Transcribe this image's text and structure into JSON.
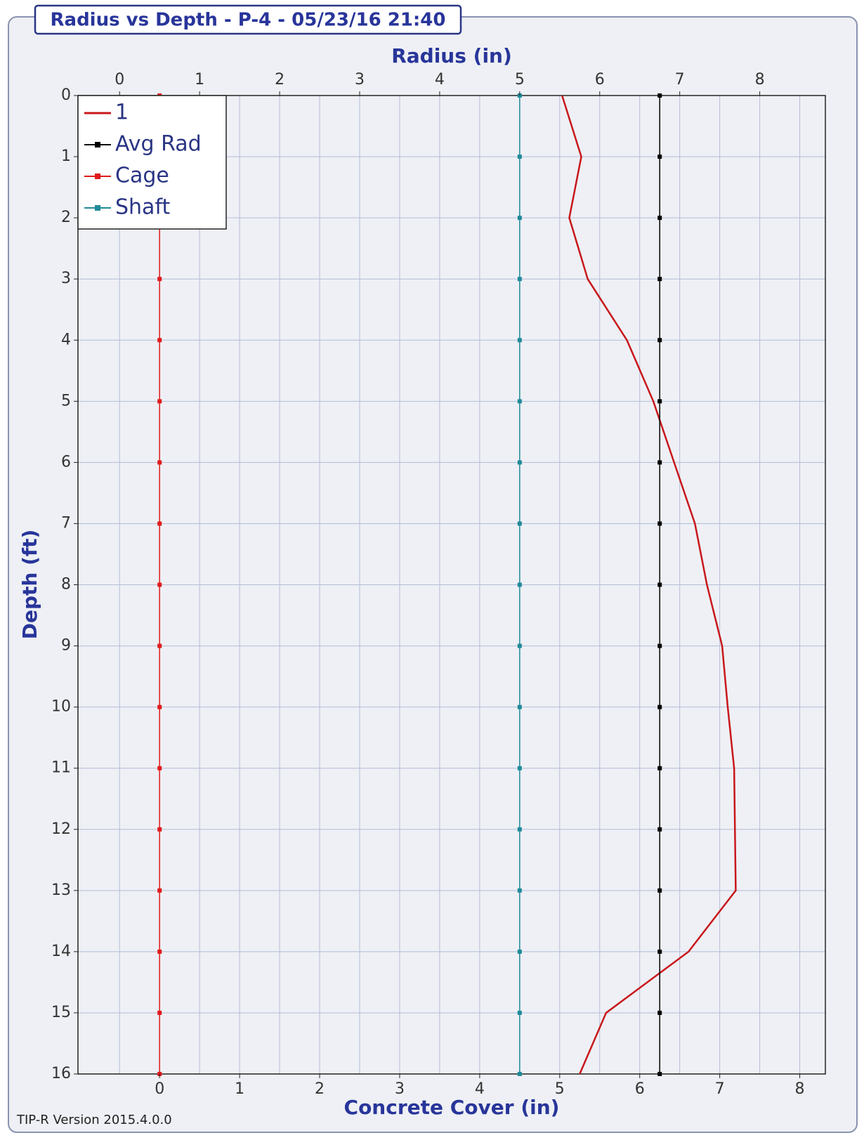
{
  "chart_data": {
    "type": "line",
    "title": "Radius vs Depth - P-4 - 05/23/16 21:40",
    "x_label": "Radius (in)",
    "x2_label": "Concrete Cover (in)",
    "y_label": "Depth (ft)",
    "y": [
      0,
      1,
      2,
      3,
      4,
      5,
      6,
      7,
      8,
      9,
      10,
      11,
      12,
      13,
      14,
      15,
      16
    ],
    "xlim": [
      -0.52,
      8.82
    ],
    "xticks": [
      0,
      1,
      2,
      3,
      4,
      5,
      6,
      7,
      8
    ],
    "x2lim": [
      -1.02,
      8.32
    ],
    "x2ticks": [
      0,
      1,
      2,
      3,
      4,
      5,
      6,
      7,
      8
    ],
    "ylim": [
      0,
      16
    ],
    "y_inverted": true,
    "yticks": [
      0,
      1,
      2,
      3,
      4,
      5,
      6,
      7,
      8,
      9,
      10,
      11,
      12,
      13,
      14,
      15,
      16
    ],
    "grid": true,
    "legend": "upper left",
    "series": [
      {
        "name": "1",
        "color": "#c8171b",
        "markers": false,
        "values": [
          5.53,
          5.77,
          5.62,
          5.85,
          6.34,
          6.67,
          6.93,
          7.19,
          7.34,
          7.53,
          7.6,
          7.68,
          7.69,
          7.7,
          7.11,
          6.08,
          5.75
        ]
      },
      {
        "name": "Avg Rad",
        "color": "#000000",
        "markers": true,
        "values": [
          6.75,
          6.75,
          6.75,
          6.75,
          6.75,
          6.75,
          6.75,
          6.75,
          6.75,
          6.75,
          6.75,
          6.75,
          6.75,
          6.75,
          6.75,
          6.75,
          6.75
        ]
      },
      {
        "name": "Cage",
        "color": "#e01a1a",
        "markers": true,
        "values": [
          0.5,
          0.5,
          0.5,
          0.5,
          0.5,
          0.5,
          0.5,
          0.5,
          0.5,
          0.5,
          0.5,
          0.5,
          0.5,
          0.5,
          0.5,
          0.5,
          0.5
        ]
      },
      {
        "name": "Shaft",
        "color": "#1f8a99",
        "markers": true,
        "values": [
          5,
          5,
          5,
          5,
          5,
          5,
          5,
          5,
          5,
          5,
          5,
          5,
          5,
          5,
          5,
          5,
          5
        ]
      }
    ]
  },
  "footer": "TIP-R Version 2015.4.0.0"
}
